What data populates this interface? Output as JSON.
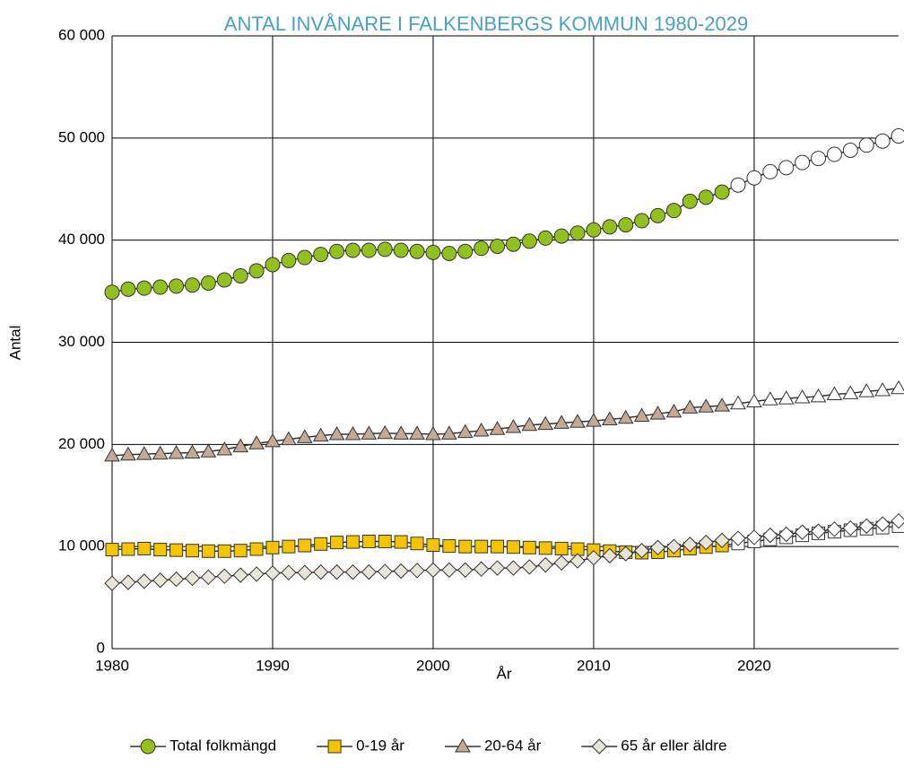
{
  "chart_data": {
    "type": "line",
    "title": "ANTAL INVÅNARE I FALKENBERGS KOMMUN 1980-2029",
    "x_label": "År",
    "y_label": "Antal",
    "x": [
      1980,
      1981,
      1982,
      1983,
      1984,
      1985,
      1986,
      1987,
      1988,
      1989,
      1990,
      1991,
      1992,
      1993,
      1994,
      1995,
      1996,
      1997,
      1998,
      1999,
      2000,
      2001,
      2002,
      2003,
      2004,
      2005,
      2006,
      2007,
      2008,
      2009,
      2010,
      2011,
      2012,
      2013,
      2014,
      2015,
      2016,
      2017,
      2018,
      2019,
      2020,
      2021,
      2022,
      2023,
      2024,
      2025,
      2026,
      2027,
      2028,
      2029
    ],
    "series": [
      {
        "name": "Total folkmängd",
        "color": "#92c01f",
        "marker": "circle",
        "values": [
          34900,
          35200,
          35300,
          35400,
          35500,
          35600,
          35800,
          36100,
          36500,
          37000,
          37600,
          38000,
          38300,
          38600,
          38900,
          39000,
          39000,
          39100,
          39000,
          38900,
          38800,
          38700,
          38900,
          39200,
          39400,
          39600,
          39900,
          40200,
          40400,
          40700,
          41000,
          41300,
          41500,
          41900,
          42400,
          42900,
          43800,
          44200,
          44700,
          45400,
          46100,
          46700,
          47100,
          47600,
          48000,
          48400,
          48800,
          49300,
          49700,
          50200
        ]
      },
      {
        "name": "0-19 år",
        "color": "#f5c400",
        "marker": "square",
        "values": [
          9700,
          9750,
          9800,
          9700,
          9650,
          9600,
          9550,
          9550,
          9600,
          9750,
          9900,
          10000,
          10100,
          10250,
          10400,
          10450,
          10500,
          10500,
          10450,
          10300,
          10150,
          10050,
          10000,
          10000,
          10000,
          9950,
          9900,
          9850,
          9800,
          9750,
          9650,
          9550,
          9450,
          9400,
          9450,
          9600,
          9800,
          9950,
          10100,
          10300,
          10500,
          10700,
          10900,
          11100,
          11300,
          11450,
          11600,
          11750,
          11850,
          12000
        ]
      },
      {
        "name": "20-64 år",
        "color": "#c4a994",
        "marker": "triangle",
        "values": [
          18900,
          19000,
          19050,
          19100,
          19150,
          19200,
          19300,
          19500,
          19800,
          20100,
          20300,
          20500,
          20700,
          20850,
          21000,
          21000,
          21050,
          21100,
          21050,
          21050,
          21000,
          21050,
          21200,
          21350,
          21500,
          21700,
          21900,
          22000,
          22100,
          22200,
          22300,
          22450,
          22600,
          22800,
          23000,
          23200,
          23600,
          23700,
          23800,
          24000,
          24200,
          24400,
          24500,
          24600,
          24700,
          24900,
          25000,
          25200,
          25300,
          25500
        ]
      },
      {
        "name": "65 år eller äldre",
        "color": "#e8e4d8",
        "marker": "diamond",
        "values": [
          6400,
          6500,
          6600,
          6700,
          6800,
          6900,
          7000,
          7100,
          7200,
          7300,
          7400,
          7450,
          7450,
          7500,
          7500,
          7500,
          7500,
          7550,
          7600,
          7650,
          7700,
          7700,
          7700,
          7800,
          7900,
          7900,
          8000,
          8200,
          8400,
          8600,
          8900,
          9100,
          9300,
          9600,
          9900,
          10000,
          10200,
          10400,
          10600,
          10800,
          10900,
          11100,
          11200,
          11400,
          11500,
          11700,
          11800,
          12000,
          12200,
          12500
        ]
      }
    ],
    "forecast_from": 2019,
    "forecast_color": "#ffffff",
    "line_color": "#333333",
    "xlim": [
      1980,
      2029
    ],
    "xticks": [
      1980,
      1990,
      2000,
      2010,
      2020
    ],
    "ylim": [
      0,
      60000
    ],
    "yticks": [
      0,
      {
        "value": 10000,
        "label": "10 000"
      },
      {
        "value": 20000,
        "label": "20 000"
      },
      {
        "value": 30000,
        "label": "30 000"
      },
      {
        "value": 40000,
        "label": "40 000"
      },
      {
        "value": 50000,
        "label": "50 000"
      },
      {
        "value": 60000,
        "label": "60 000"
      }
    ],
    "grid": true,
    "legend": "bottom"
  }
}
